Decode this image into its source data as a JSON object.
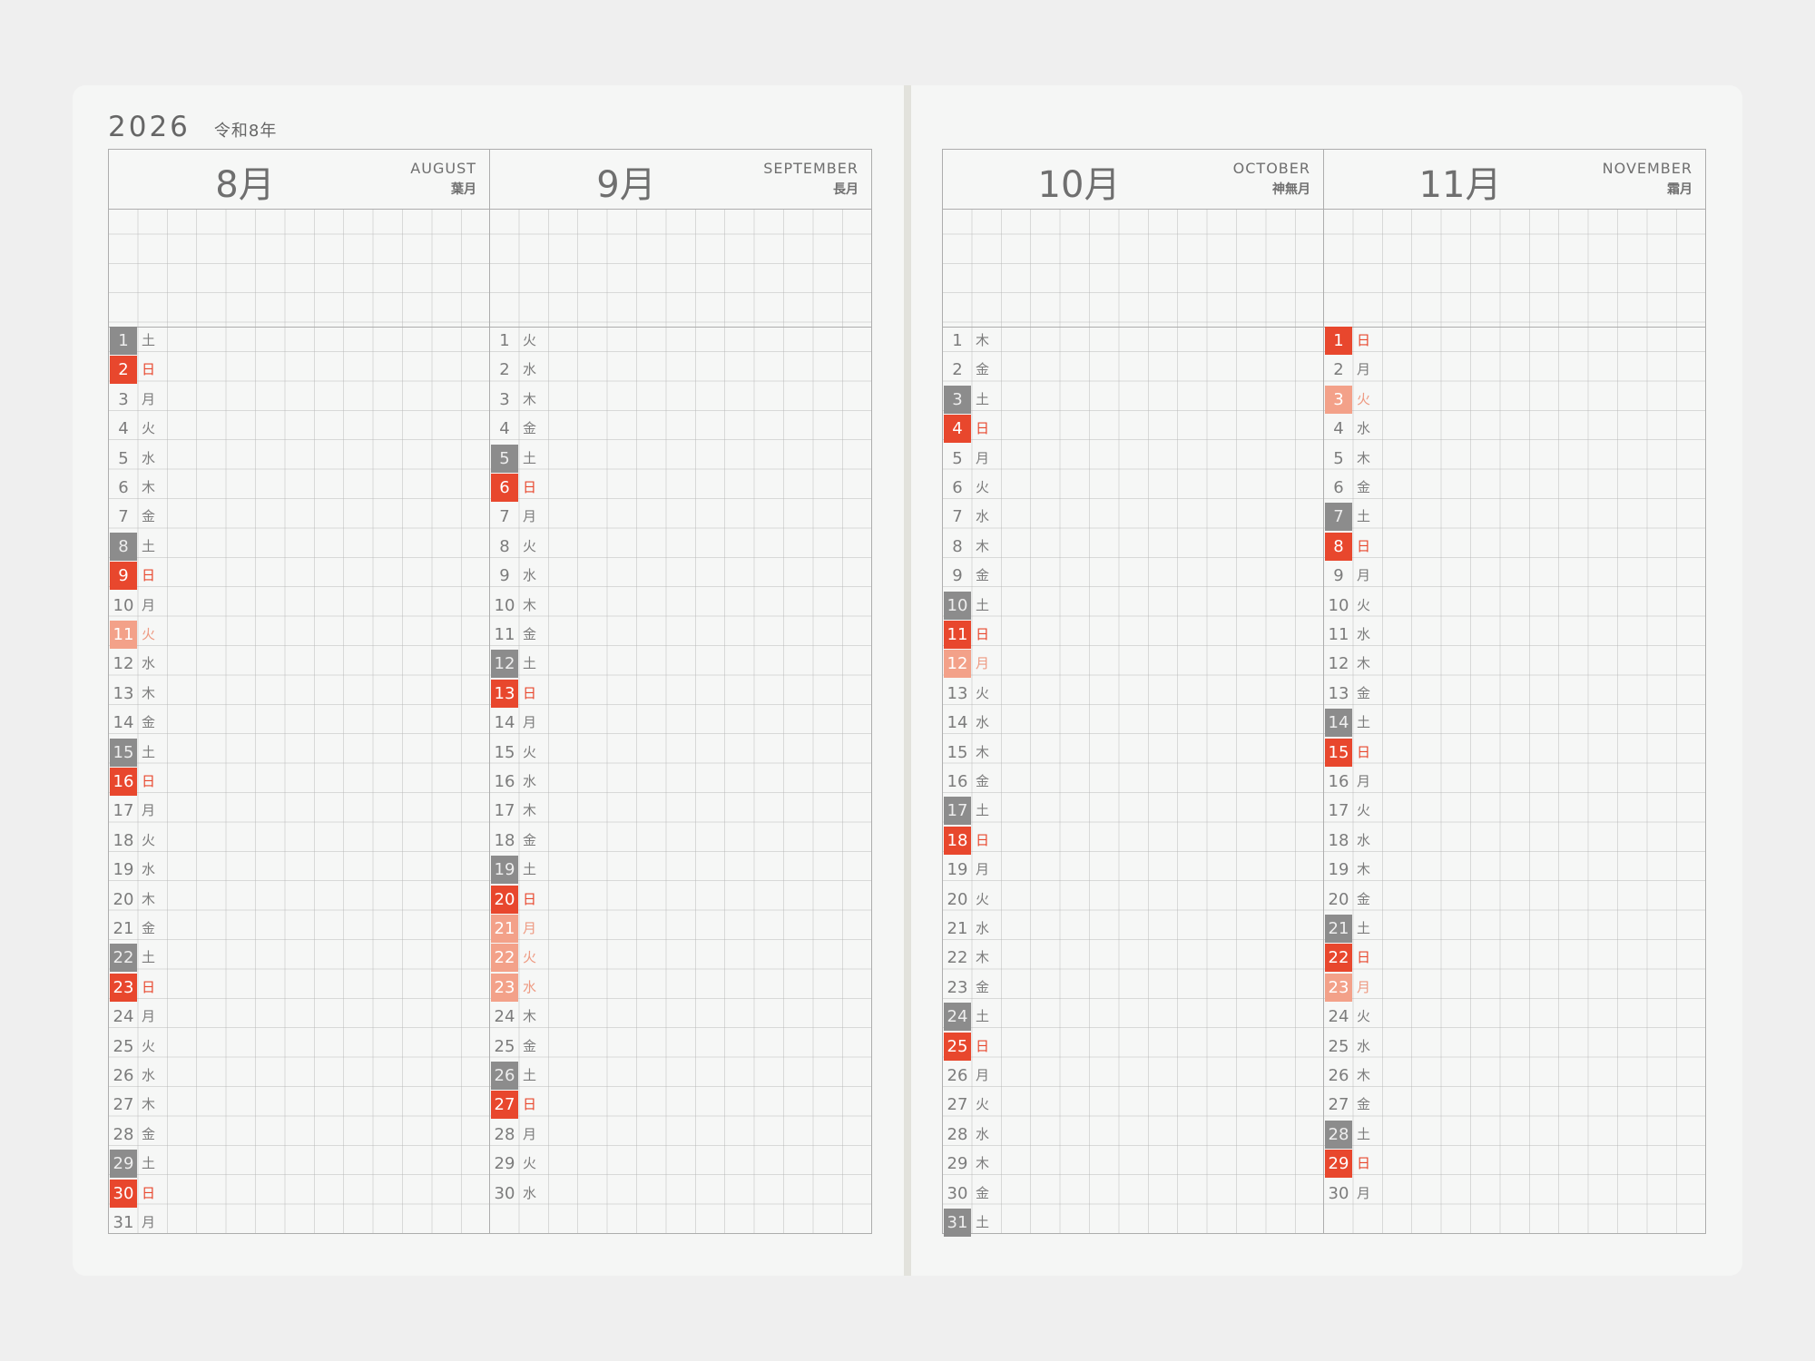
{
  "year": "2026",
  "era": "令和8年",
  "months": [
    {
      "jp": "8月",
      "en": "AUGUST",
      "trad": "葉月",
      "days": [
        {
          "n": "1",
          "w": "土",
          "t": "sat"
        },
        {
          "n": "2",
          "w": "日",
          "t": "sun"
        },
        {
          "n": "3",
          "w": "月",
          "t": ""
        },
        {
          "n": "4",
          "w": "火",
          "t": ""
        },
        {
          "n": "5",
          "w": "水",
          "t": ""
        },
        {
          "n": "6",
          "w": "木",
          "t": ""
        },
        {
          "n": "7",
          "w": "金",
          "t": ""
        },
        {
          "n": "8",
          "w": "土",
          "t": "sat"
        },
        {
          "n": "9",
          "w": "日",
          "t": "sun"
        },
        {
          "n": "10",
          "w": "月",
          "t": ""
        },
        {
          "n": "11",
          "w": "火",
          "t": "hol"
        },
        {
          "n": "12",
          "w": "水",
          "t": ""
        },
        {
          "n": "13",
          "w": "木",
          "t": ""
        },
        {
          "n": "14",
          "w": "金",
          "t": ""
        },
        {
          "n": "15",
          "w": "土",
          "t": "sat"
        },
        {
          "n": "16",
          "w": "日",
          "t": "sun"
        },
        {
          "n": "17",
          "w": "月",
          "t": ""
        },
        {
          "n": "18",
          "w": "火",
          "t": ""
        },
        {
          "n": "19",
          "w": "水",
          "t": ""
        },
        {
          "n": "20",
          "w": "木",
          "t": ""
        },
        {
          "n": "21",
          "w": "金",
          "t": ""
        },
        {
          "n": "22",
          "w": "土",
          "t": "sat"
        },
        {
          "n": "23",
          "w": "日",
          "t": "sun"
        },
        {
          "n": "24",
          "w": "月",
          "t": ""
        },
        {
          "n": "25",
          "w": "火",
          "t": ""
        },
        {
          "n": "26",
          "w": "水",
          "t": ""
        },
        {
          "n": "27",
          "w": "木",
          "t": ""
        },
        {
          "n": "28",
          "w": "金",
          "t": ""
        },
        {
          "n": "29",
          "w": "土",
          "t": "sat"
        },
        {
          "n": "30",
          "w": "日",
          "t": "sun"
        },
        {
          "n": "31",
          "w": "月",
          "t": ""
        }
      ]
    },
    {
      "jp": "9月",
      "en": "SEPTEMBER",
      "trad": "長月",
      "days": [
        {
          "n": "1",
          "w": "火",
          "t": ""
        },
        {
          "n": "2",
          "w": "水",
          "t": ""
        },
        {
          "n": "3",
          "w": "木",
          "t": ""
        },
        {
          "n": "4",
          "w": "金",
          "t": ""
        },
        {
          "n": "5",
          "w": "土",
          "t": "sat"
        },
        {
          "n": "6",
          "w": "日",
          "t": "sun"
        },
        {
          "n": "7",
          "w": "月",
          "t": ""
        },
        {
          "n": "8",
          "w": "火",
          "t": ""
        },
        {
          "n": "9",
          "w": "水",
          "t": ""
        },
        {
          "n": "10",
          "w": "木",
          "t": ""
        },
        {
          "n": "11",
          "w": "金",
          "t": ""
        },
        {
          "n": "12",
          "w": "土",
          "t": "sat"
        },
        {
          "n": "13",
          "w": "日",
          "t": "sun"
        },
        {
          "n": "14",
          "w": "月",
          "t": ""
        },
        {
          "n": "15",
          "w": "火",
          "t": ""
        },
        {
          "n": "16",
          "w": "水",
          "t": ""
        },
        {
          "n": "17",
          "w": "木",
          "t": ""
        },
        {
          "n": "18",
          "w": "金",
          "t": ""
        },
        {
          "n": "19",
          "w": "土",
          "t": "sat"
        },
        {
          "n": "20",
          "w": "日",
          "t": "sun"
        },
        {
          "n": "21",
          "w": "月",
          "t": "hol"
        },
        {
          "n": "22",
          "w": "火",
          "t": "hol"
        },
        {
          "n": "23",
          "w": "水",
          "t": "hol"
        },
        {
          "n": "24",
          "w": "木",
          "t": ""
        },
        {
          "n": "25",
          "w": "金",
          "t": ""
        },
        {
          "n": "26",
          "w": "土",
          "t": "sat"
        },
        {
          "n": "27",
          "w": "日",
          "t": "sun"
        },
        {
          "n": "28",
          "w": "月",
          "t": ""
        },
        {
          "n": "29",
          "w": "火",
          "t": ""
        },
        {
          "n": "30",
          "w": "水",
          "t": ""
        }
      ]
    },
    {
      "jp": "10月",
      "en": "OCTOBER",
      "trad": "神無月",
      "days": [
        {
          "n": "1",
          "w": "木",
          "t": ""
        },
        {
          "n": "2",
          "w": "金",
          "t": ""
        },
        {
          "n": "3",
          "w": "土",
          "t": "sat"
        },
        {
          "n": "4",
          "w": "日",
          "t": "sun"
        },
        {
          "n": "5",
          "w": "月",
          "t": ""
        },
        {
          "n": "6",
          "w": "火",
          "t": ""
        },
        {
          "n": "7",
          "w": "水",
          "t": ""
        },
        {
          "n": "8",
          "w": "木",
          "t": ""
        },
        {
          "n": "9",
          "w": "金",
          "t": ""
        },
        {
          "n": "10",
          "w": "土",
          "t": "sat"
        },
        {
          "n": "11",
          "w": "日",
          "t": "sun"
        },
        {
          "n": "12",
          "w": "月",
          "t": "hol"
        },
        {
          "n": "13",
          "w": "火",
          "t": ""
        },
        {
          "n": "14",
          "w": "水",
          "t": ""
        },
        {
          "n": "15",
          "w": "木",
          "t": ""
        },
        {
          "n": "16",
          "w": "金",
          "t": ""
        },
        {
          "n": "17",
          "w": "土",
          "t": "sat"
        },
        {
          "n": "18",
          "w": "日",
          "t": "sun"
        },
        {
          "n": "19",
          "w": "月",
          "t": ""
        },
        {
          "n": "20",
          "w": "火",
          "t": ""
        },
        {
          "n": "21",
          "w": "水",
          "t": ""
        },
        {
          "n": "22",
          "w": "木",
          "t": ""
        },
        {
          "n": "23",
          "w": "金",
          "t": ""
        },
        {
          "n": "24",
          "w": "土",
          "t": "sat"
        },
        {
          "n": "25",
          "w": "日",
          "t": "sun"
        },
        {
          "n": "26",
          "w": "月",
          "t": ""
        },
        {
          "n": "27",
          "w": "火",
          "t": ""
        },
        {
          "n": "28",
          "w": "水",
          "t": ""
        },
        {
          "n": "29",
          "w": "木",
          "t": ""
        },
        {
          "n": "30",
          "w": "金",
          "t": ""
        },
        {
          "n": "31",
          "w": "土",
          "t": "sat"
        }
      ]
    },
    {
      "jp": "11月",
      "en": "NOVEMBER",
      "trad": "霜月",
      "days": [
        {
          "n": "1",
          "w": "日",
          "t": "sun"
        },
        {
          "n": "2",
          "w": "月",
          "t": ""
        },
        {
          "n": "3",
          "w": "火",
          "t": "hol"
        },
        {
          "n": "4",
          "w": "水",
          "t": ""
        },
        {
          "n": "5",
          "w": "木",
          "t": ""
        },
        {
          "n": "6",
          "w": "金",
          "t": ""
        },
        {
          "n": "7",
          "w": "土",
          "t": "sat"
        },
        {
          "n": "8",
          "w": "日",
          "t": "sun"
        },
        {
          "n": "9",
          "w": "月",
          "t": ""
        },
        {
          "n": "10",
          "w": "火",
          "t": ""
        },
        {
          "n": "11",
          "w": "水",
          "t": ""
        },
        {
          "n": "12",
          "w": "木",
          "t": ""
        },
        {
          "n": "13",
          "w": "金",
          "t": ""
        },
        {
          "n": "14",
          "w": "土",
          "t": "sat"
        },
        {
          "n": "15",
          "w": "日",
          "t": "sun"
        },
        {
          "n": "16",
          "w": "月",
          "t": ""
        },
        {
          "n": "17",
          "w": "火",
          "t": ""
        },
        {
          "n": "18",
          "w": "水",
          "t": ""
        },
        {
          "n": "19",
          "w": "木",
          "t": ""
        },
        {
          "n": "20",
          "w": "金",
          "t": ""
        },
        {
          "n": "21",
          "w": "土",
          "t": "sat"
        },
        {
          "n": "22",
          "w": "日",
          "t": "sun"
        },
        {
          "n": "23",
          "w": "月",
          "t": "hol"
        },
        {
          "n": "24",
          "w": "火",
          "t": ""
        },
        {
          "n": "25",
          "w": "水",
          "t": ""
        },
        {
          "n": "26",
          "w": "木",
          "t": ""
        },
        {
          "n": "27",
          "w": "金",
          "t": ""
        },
        {
          "n": "28",
          "w": "土",
          "t": "sat"
        },
        {
          "n": "29",
          "w": "日",
          "t": "sun"
        },
        {
          "n": "30",
          "w": "月",
          "t": ""
        }
      ]
    }
  ],
  "colors": {
    "sunday": "#e8472d",
    "saturday": "#8c8c8c",
    "holiday": "#f3a189",
    "grid": "#b4b4b4",
    "paper": "#f5f6f5"
  }
}
